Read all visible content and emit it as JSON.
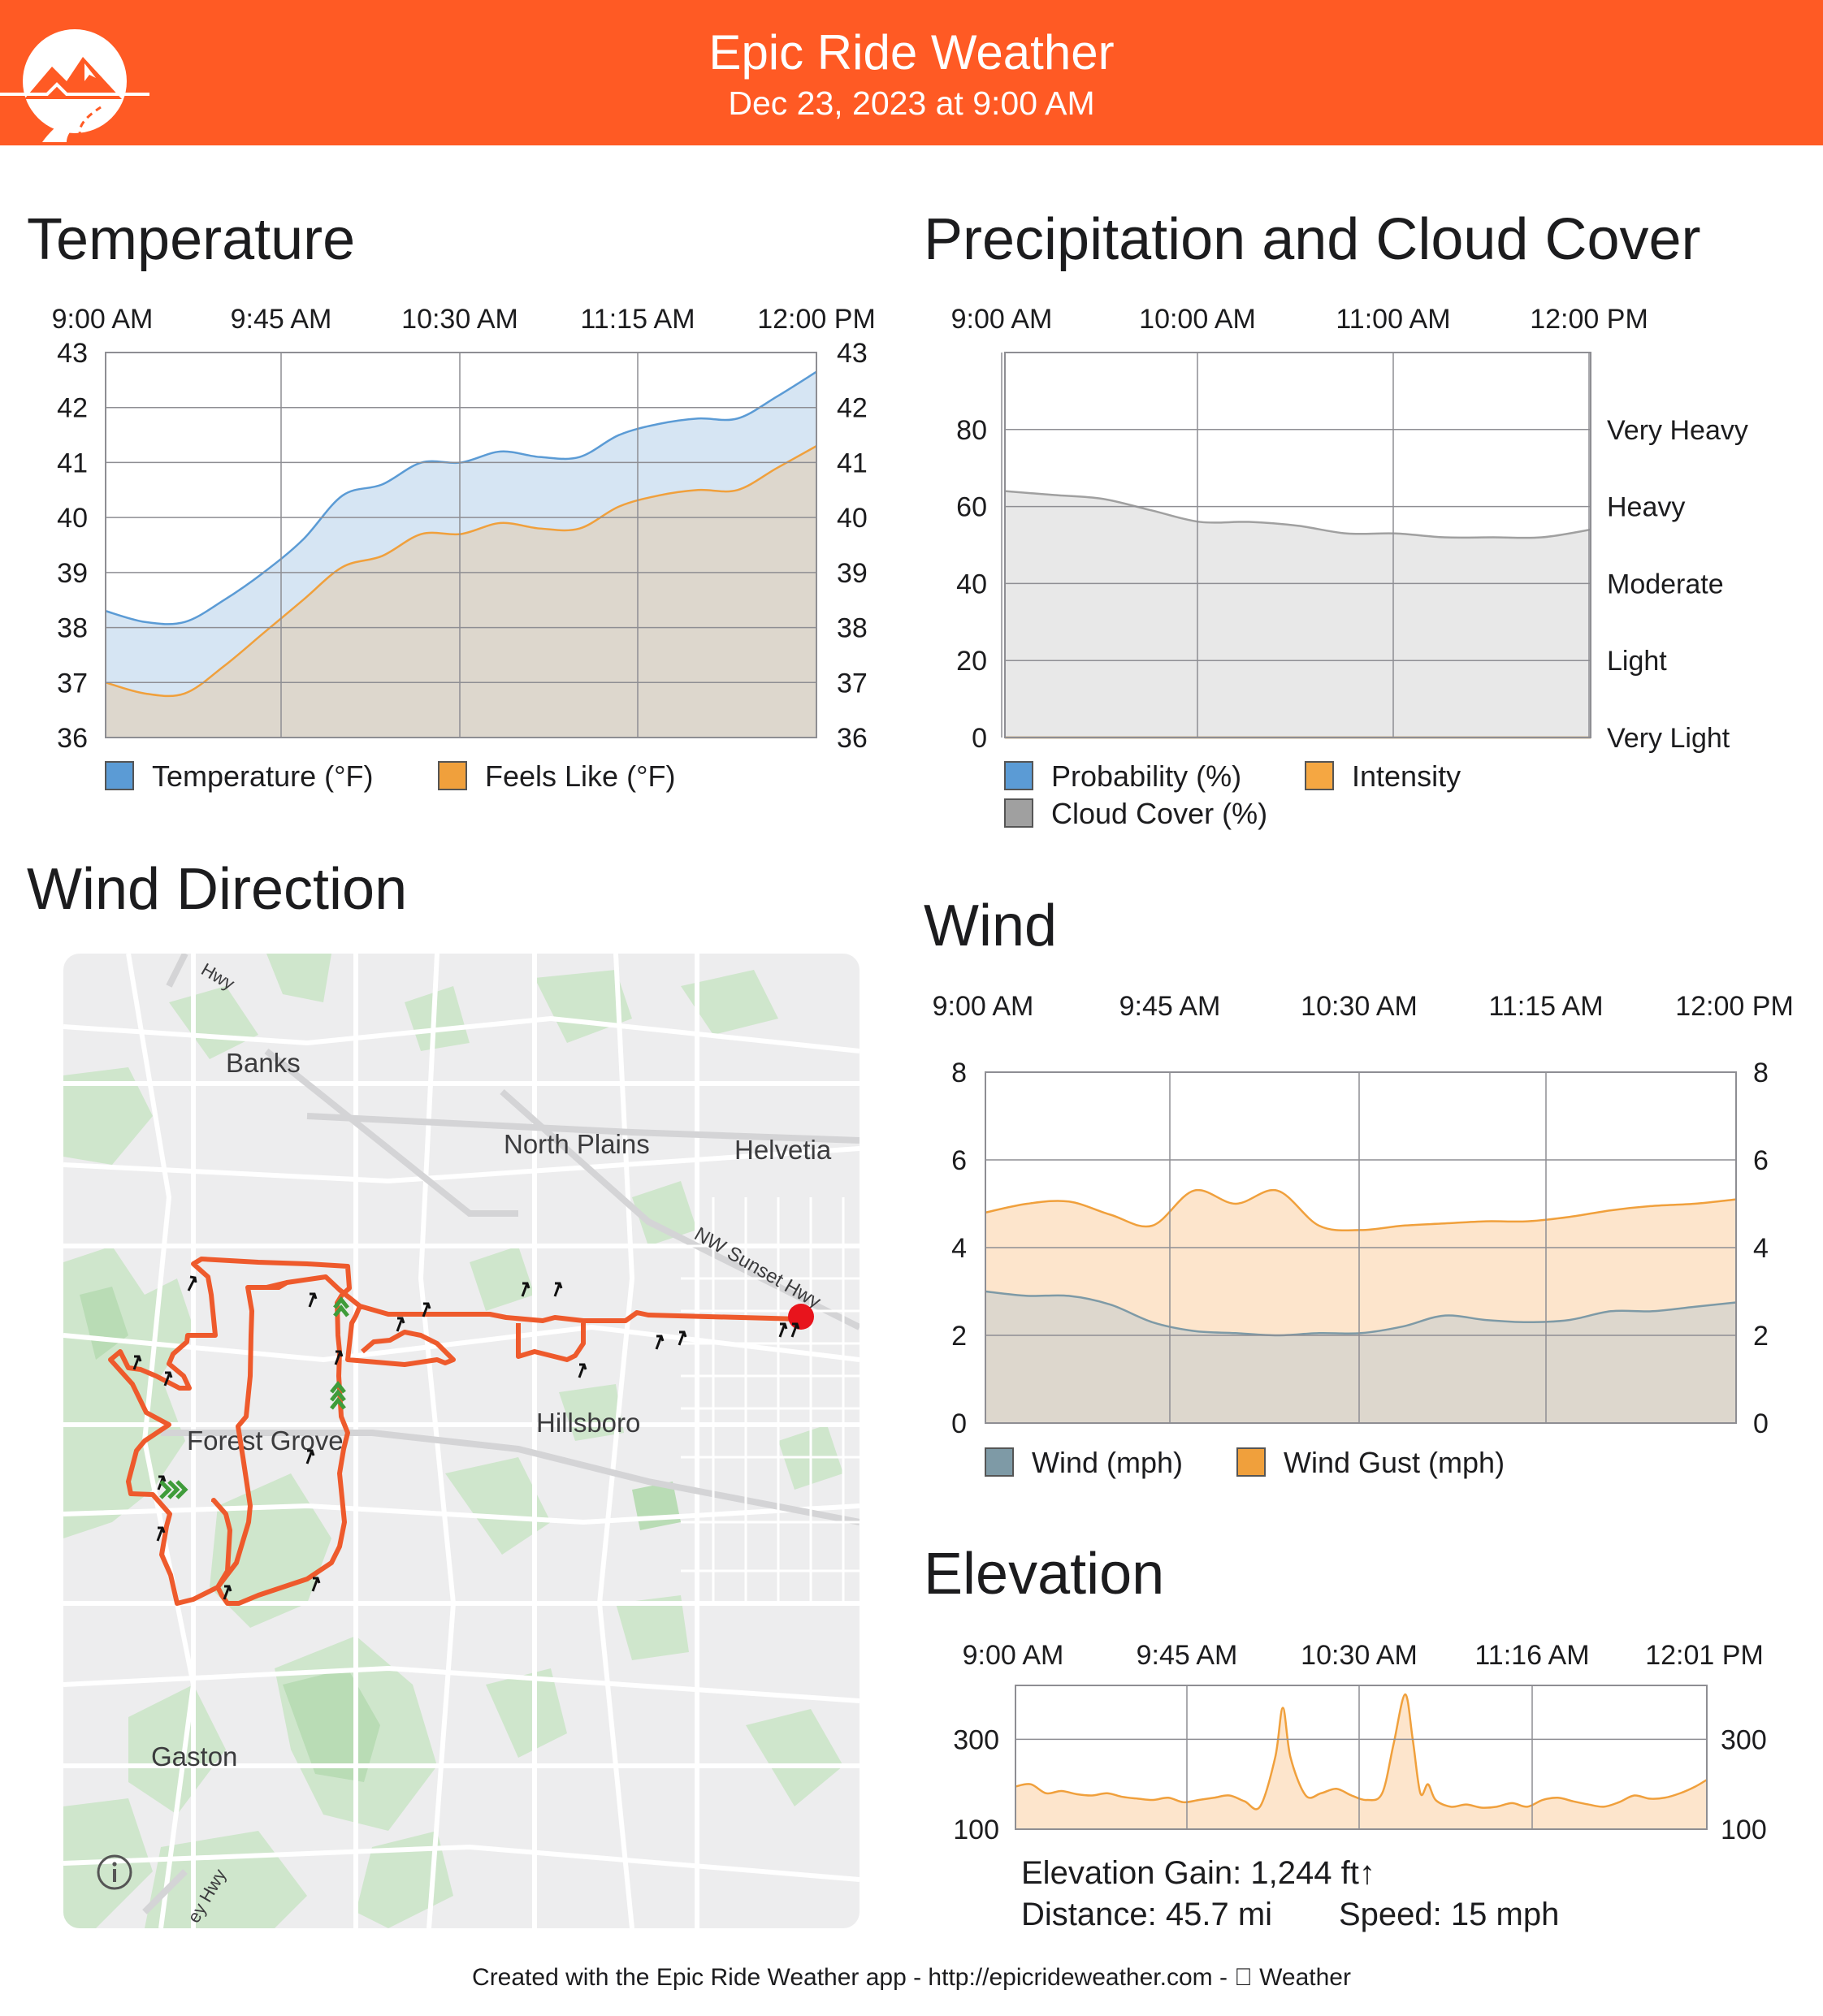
{
  "header": {
    "title": "Epic Ride Weather",
    "subtitle": "Dec 23, 2023 at 9:00 AM",
    "brand_color": "#ff5a24"
  },
  "sections": {
    "temperature": "Temperature",
    "precip": "Precipitation and Cloud Cover",
    "wind_direction": "Wind Direction",
    "wind": "Wind",
    "elevation": "Elevation"
  },
  "elevation_stats": {
    "gain": "Elevation Gain: 1,244 ft↑",
    "distance": "Distance: 45.7 mi",
    "speed": "Speed: 15 mph"
  },
  "footer": {
    "text": "Created with the Epic Ride Weather app - http://epicrideweather.com -  Weather",
    "icon": "apple-icon"
  },
  "map": {
    "labels": [
      "Banks",
      "North Plains",
      "Helvetia",
      "NW Sunset Hwy",
      "Forest Grove",
      "Hillsboro",
      "Gaston",
      "Hwy",
      "ey Hwy"
    ],
    "route_color": "#ee5a2c",
    "end_marker_color": "#e8141c",
    "wind_arrow_icon": "wind-arrow-icon",
    "tailwind_icon": "chevron-up-icon",
    "info_icon": "info-icon"
  },
  "chart_data": [
    {
      "id": "temperature",
      "type": "area",
      "title": "Temperature",
      "x_ticks": [
        "9:00 AM",
        "9:45 AM",
        "10:30 AM",
        "11:15 AM",
        "12:00 PM"
      ],
      "x": [
        0,
        10,
        20,
        30,
        40,
        50,
        60,
        70,
        80,
        90,
        100,
        110,
        120,
        130,
        140,
        150,
        160,
        170,
        180
      ],
      "ylim": [
        36,
        43
      ],
      "y_ticks": [
        36,
        37,
        38,
        39,
        40,
        41,
        42,
        43
      ],
      "grid": true,
      "legend_position": "bottom",
      "series": [
        {
          "name": "Temperature (°F)",
          "color": "#5b9bd5",
          "fill": "#d6e5f3",
          "values": [
            38.3,
            38.1,
            38.1,
            38.5,
            39.0,
            39.6,
            40.4,
            40.6,
            41.0,
            41.0,
            41.2,
            41.1,
            41.1,
            41.5,
            41.7,
            41.8,
            41.8,
            42.2,
            42.65
          ]
        },
        {
          "name": "Feels Like (°F)",
          "color": "#f0a03c",
          "fill": "#ddd7cd",
          "values": [
            37.0,
            36.8,
            36.8,
            37.3,
            37.9,
            38.5,
            39.1,
            39.3,
            39.7,
            39.7,
            39.9,
            39.8,
            39.8,
            40.2,
            40.4,
            40.5,
            40.5,
            40.9,
            41.3
          ]
        }
      ]
    },
    {
      "id": "precipitation",
      "type": "area",
      "title": "Precipitation and Cloud Cover",
      "x_ticks": [
        "9:00 AM",
        "10:00 AM",
        "11:00 AM",
        "12:00 PM"
      ],
      "x": [
        0,
        15,
        30,
        45,
        60,
        75,
        90,
        105,
        120,
        135,
        150,
        165,
        180
      ],
      "ylim": [
        0,
        100
      ],
      "y_ticks": [
        0,
        20,
        40,
        60,
        80
      ],
      "right_ticks": [
        "Very Light",
        "Light",
        "Moderate",
        "Heavy",
        "Very Heavy"
      ],
      "grid": true,
      "legend_position": "bottom",
      "series": [
        {
          "name": "Probability (%)",
          "color": "#5b9bd5",
          "values": [
            0,
            0,
            0,
            0,
            0,
            0,
            0,
            0,
            0,
            0,
            0,
            0,
            0
          ]
        },
        {
          "name": "Intensity",
          "color": "#f5a742",
          "values": [
            0,
            0,
            0,
            0,
            0,
            0,
            0,
            0,
            0,
            0,
            0,
            0,
            0
          ]
        },
        {
          "name": "Cloud Cover (%)",
          "color": "#a0a0a0",
          "fill": "#e8e8e8",
          "values": [
            64,
            63,
            62,
            59,
            56,
            56,
            55,
            53,
            53,
            52,
            52,
            52,
            54
          ]
        }
      ]
    },
    {
      "id": "wind",
      "type": "area",
      "title": "Wind",
      "x_ticks": [
        "9:00 AM",
        "9:45 AM",
        "10:30 AM",
        "11:15 AM",
        "12:00 PM"
      ],
      "x": [
        0,
        10,
        20,
        30,
        40,
        50,
        60,
        70,
        80,
        90,
        100,
        110,
        120,
        130,
        140,
        150,
        160,
        170,
        180
      ],
      "ylim": [
        0,
        8
      ],
      "y_ticks": [
        0,
        2,
        4,
        6,
        8
      ],
      "grid": true,
      "legend_position": "bottom",
      "series": [
        {
          "name": "Wind (mph)",
          "color": "#7e9aa6",
          "fill": "#ddd7cd",
          "values": [
            3.0,
            2.9,
            2.9,
            2.7,
            2.3,
            2.1,
            2.05,
            2.0,
            2.05,
            2.05,
            2.2,
            2.45,
            2.35,
            2.3,
            2.35,
            2.55,
            2.55,
            2.65,
            2.75
          ]
        },
        {
          "name": "Wind Gust (mph)",
          "color": "#f0a03c",
          "fill": "#fde5cc",
          "values": [
            4.8,
            5.0,
            5.05,
            4.75,
            4.5,
            5.3,
            5.0,
            5.3,
            4.5,
            4.4,
            4.5,
            4.55,
            4.6,
            4.6,
            4.7,
            4.85,
            4.95,
            5.0,
            5.1
          ]
        }
      ]
    },
    {
      "id": "elevation",
      "type": "area",
      "title": "Elevation",
      "x_ticks": [
        "9:00 AM",
        "9:45 AM",
        "10:30 AM",
        "11:16 AM",
        "12:01 PM"
      ],
      "x": [
        0,
        4,
        8,
        12,
        16,
        20,
        24,
        28,
        32,
        36,
        40,
        44,
        48,
        52,
        56,
        60,
        64,
        68,
        70,
        72,
        76,
        80,
        84,
        88,
        92,
        96,
        99,
        102,
        104,
        106,
        108,
        110,
        114,
        118,
        122,
        126,
        130,
        134,
        138,
        142,
        146,
        150,
        154,
        158,
        162,
        166,
        170,
        174,
        178,
        181
      ],
      "ylim": [
        100,
        420
      ],
      "y_ticks": [
        100,
        300
      ],
      "grid": true,
      "series": [
        {
          "name": "Elevation",
          "color": "#f0a03c",
          "fill": "#fde5cc",
          "values": [
            195,
            200,
            180,
            185,
            178,
            175,
            180,
            172,
            168,
            165,
            170,
            160,
            165,
            170,
            175,
            162,
            150,
            260,
            370,
            260,
            175,
            180,
            190,
            175,
            165,
            180,
            290,
            400,
            300,
            180,
            200,
            165,
            150,
            155,
            148,
            150,
            158,
            150,
            165,
            170,
            162,
            155,
            150,
            160,
            175,
            168,
            170,
            180,
            195,
            210
          ]
        }
      ]
    }
  ]
}
